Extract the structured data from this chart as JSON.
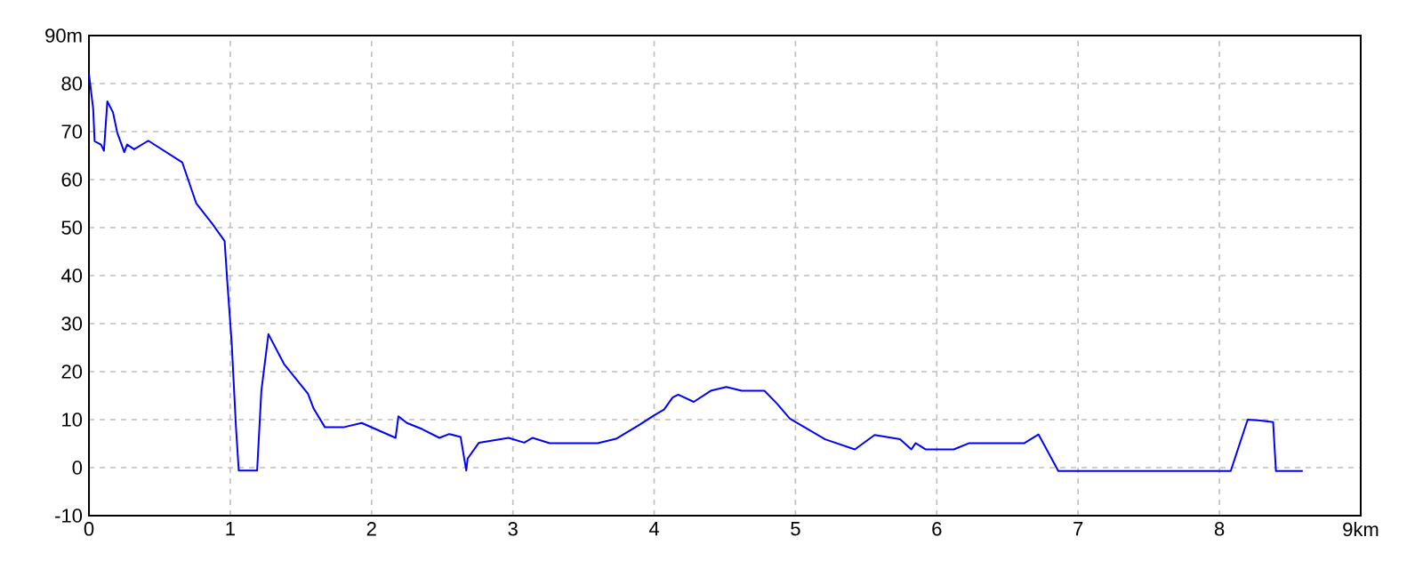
{
  "chart_data": {
    "type": "line",
    "xlim": [
      0,
      9
    ],
    "ylim": [
      -10,
      90
    ],
    "xticks": [
      0,
      1,
      2,
      3,
      4,
      5,
      6,
      7,
      8,
      {
        "value": 9,
        "label": "9km"
      }
    ],
    "yticks": [
      -10,
      0,
      10,
      20,
      30,
      40,
      50,
      60,
      70,
      80,
      {
        "value": 90,
        "label": "90m"
      }
    ],
    "grid": true,
    "marker": "none",
    "line_style": "solid",
    "series": [
      {
        "color": "#0000ff",
        "x": [
          0,
          0.01,
          0.03,
          0.04,
          0.085,
          0.106,
          0.13,
          0.17,
          0.2,
          0.25,
          0.27,
          0.32,
          0.42,
          0.66,
          0.76,
          0.87,
          0.96,
          0.98,
          1.01,
          1.04,
          1.06,
          1.19,
          1.22,
          1.27,
          1.38,
          1.55,
          1.59,
          1.67,
          1.8,
          1.93,
          2.17,
          2.19,
          2.25,
          2.36,
          2.48,
          2.55,
          2.63,
          2.67,
          2.68,
          2.76,
          2.97,
          3.08,
          3.14,
          3.16,
          3.26,
          3.6,
          3.73,
          3.9,
          4.0,
          4.07,
          4.13,
          4.17,
          4.28,
          4.4,
          4.51,
          4.62,
          4.78,
          4.87,
          4.96,
          5.21,
          5.42,
          5.56,
          5.74,
          5.82,
          5.85,
          5.92,
          6.12,
          6.23,
          6.62,
          6.72,
          6.86,
          8.08,
          8.2,
          8.29,
          8.38,
          8.4,
          8.59
        ],
        "values": [
          82,
          79.6,
          74.7,
          68,
          67.3,
          66,
          76.3,
          74,
          69.8,
          65.7,
          67.3,
          66.3,
          68.1,
          63.6,
          55,
          50.9,
          47.2,
          38.3,
          26,
          8.6,
          -0.6,
          -0.6,
          16,
          27.8,
          21.6,
          15.4,
          12.3,
          8.4,
          8.4,
          9.3,
          6.2,
          10.7,
          9.3,
          8,
          6.2,
          7,
          6.4,
          -0.6,
          1.9,
          5.2,
          6.2,
          5.2,
          6.2,
          6,
          5.1,
          5.1,
          6,
          9,
          10.9,
          12.1,
          14.6,
          15.2,
          13.7,
          16,
          16.8,
          16,
          16,
          13.3,
          10.2,
          5.9,
          3.8,
          6.8,
          5.9,
          3.8,
          5.1,
          3.8,
          3.8,
          5.1,
          5.1,
          6.9,
          -0.7,
          -0.7,
          10,
          9.8,
          9.5,
          -0.7,
          -0.7
        ]
      }
    ]
  }
}
